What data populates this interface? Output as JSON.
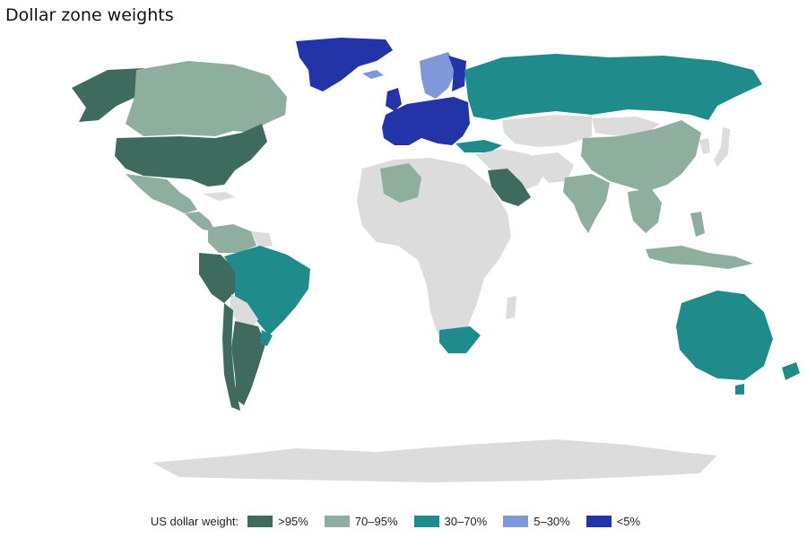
{
  "title": "Dollar zone weights",
  "colors": {
    "gt95": "#3f6b5f",
    "r70_95": "#8faf9e",
    "r30_70": "#1f8b8b",
    "r5_30": "#7f98d8",
    "lt5": "#2334a8",
    "nodata": "#dcdcdc",
    "background": "#f7f7f7"
  },
  "legend": {
    "title": "US dollar weight:",
    "items": [
      {
        "label": ">95%",
        "color": "#3f6b5f"
      },
      {
        "label": "70–95%",
        "color": "#8faf9e"
      },
      {
        "label": "30–70%",
        "color": "#1f8b8b"
      },
      {
        "label": "5–30%",
        "color": "#7f98d8"
      },
      {
        "label": "<5%",
        "color": "#2334a8"
      }
    ]
  }
}
